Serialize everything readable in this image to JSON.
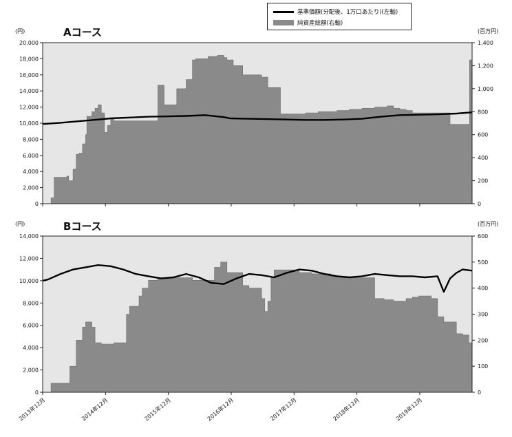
{
  "legend": {
    "line_label": "基準価額(分配後、1万口あたり)(左軸)",
    "area_label": "純資産総額(右軸)"
  },
  "x_labels": [
    "2013年12月",
    "2014年12月",
    "2015年12月",
    "2016年12月",
    "2017年12月",
    "2018年12月",
    "2019年12月"
  ],
  "colors": {
    "area": "#8a8a8a",
    "plot_bg": "#e6e6e6",
    "line": "#000000"
  },
  "chart_data": [
    {
      "type": "area",
      "title": "Aコース",
      "left_unit": "(円)",
      "right_unit": "(百万円)",
      "x_range": [
        2013.917,
        2020.75
      ],
      "y_left_range": [
        0,
        20000
      ],
      "y_right_range": [
        0,
        1400
      ],
      "y_left_ticks": [
        "0",
        "2,000",
        "4,000",
        "6,000",
        "8,000",
        "10,000",
        "12,000",
        "14,000",
        "16,000",
        "18,000",
        "20,000"
      ],
      "y_right_ticks": [
        "0",
        "200",
        "400",
        "600",
        "800",
        "1,000",
        "1,200",
        "1,400"
      ],
      "series": [
        {
          "axis": "right",
          "kind": "area",
          "x": [
            2013.917,
            2014.0,
            2014.05,
            2014.1,
            2014.3,
            2014.33,
            2014.4,
            2014.45,
            2014.5,
            2014.55,
            2014.6,
            2014.62,
            2014.7,
            2014.75,
            2014.8,
            2014.85,
            2014.9,
            2014.95,
            2015.0,
            2015.05,
            2015.1,
            2015.15,
            2015.2,
            2015.25,
            2015.35,
            2015.5,
            2015.7,
            2015.75,
            2015.85,
            2016.05,
            2016.2,
            2016.3,
            2016.35,
            2016.45,
            2016.55,
            2016.7,
            2016.8,
            2016.85,
            2016.95,
            2017.1,
            2017.3,
            2017.4,
            2017.5,
            2017.6,
            2017.7,
            2017.8,
            2017.95,
            2018.1,
            2018.3,
            2018.5,
            2018.6,
            2018.8,
            2019.0,
            2019.2,
            2019.4,
            2019.5,
            2019.6,
            2019.7,
            2019.8,
            2020.0,
            2020.2,
            2020.4,
            2020.6,
            2020.7,
            2020.71,
            2020.75
          ],
          "values": [
            0,
            0,
            50,
            230,
            240,
            200,
            300,
            430,
            440,
            520,
            600,
            760,
            800,
            830,
            860,
            790,
            620,
            680,
            740,
            720,
            720,
            720,
            720,
            720,
            720,
            720,
            720,
            1030,
            860,
            1000,
            1080,
            1250,
            1260,
            1260,
            1280,
            1290,
            1270,
            1250,
            1200,
            1120,
            1120,
            1100,
            1010,
            1010,
            780,
            780,
            780,
            790,
            800,
            800,
            810,
            820,
            830,
            840,
            850,
            830,
            820,
            810,
            790,
            790,
            790,
            690,
            690,
            690,
            1250,
            1250
          ]
        },
        {
          "axis": "left",
          "kind": "line",
          "x": [
            2013.917,
            2014.2,
            2014.5,
            2014.8,
            2015.0,
            2015.3,
            2015.6,
            2015.9,
            2016.2,
            2016.5,
            2016.8,
            2016.9,
            2017.2,
            2017.5,
            2017.8,
            2018.1,
            2018.4,
            2018.7,
            2019.0,
            2019.3,
            2019.6,
            2019.9,
            2020.2,
            2020.5,
            2020.75
          ],
          "values": [
            9900,
            10050,
            10250,
            10450,
            10600,
            10700,
            10800,
            10850,
            10900,
            11000,
            10750,
            10600,
            10550,
            10500,
            10450,
            10400,
            10400,
            10450,
            10550,
            10800,
            11000,
            11050,
            11100,
            11200,
            11350
          ]
        }
      ]
    },
    {
      "type": "area",
      "title": "Bコース",
      "left_unit": "(円)",
      "right_unit": "(百万円)",
      "x_range": [
        2013.917,
        2020.75
      ],
      "y_left_range": [
        0,
        14000
      ],
      "y_right_range": [
        0,
        600
      ],
      "y_left_ticks": [
        "0",
        "2,000",
        "4,000",
        "6,000",
        "8,000",
        "10,000",
        "12,000",
        "14,000"
      ],
      "y_right_ticks": [
        "0",
        "100",
        "200",
        "300",
        "400",
        "500",
        "600"
      ],
      "series": [
        {
          "axis": "right",
          "kind": "area",
          "x": [
            2013.917,
            2014.0,
            2014.05,
            2014.3,
            2014.35,
            2014.45,
            2014.55,
            2014.6,
            2014.7,
            2014.75,
            2014.85,
            2014.95,
            2015.05,
            2015.25,
            2015.3,
            2015.45,
            2015.5,
            2015.6,
            2015.75,
            2016.0,
            2016.3,
            2016.5,
            2016.6,
            2016.65,
            2016.75,
            2016.85,
            2017.1,
            2017.2,
            2017.4,
            2017.45,
            2017.5,
            2017.55,
            2017.6,
            2017.95,
            2018.0,
            2018.2,
            2018.5,
            2018.7,
            2018.8,
            2018.9,
            2019.05,
            2019.2,
            2019.35,
            2019.5,
            2019.7,
            2019.8,
            2019.9,
            2020.0,
            2020.1,
            2020.2,
            2020.3,
            2020.5,
            2020.6,
            2020.7,
            2020.75
          ],
          "values": [
            0,
            0,
            35,
            35,
            100,
            200,
            250,
            270,
            250,
            190,
            185,
            185,
            190,
            300,
            330,
            370,
            400,
            430,
            440,
            440,
            430,
            430,
            430,
            480,
            500,
            460,
            410,
            400,
            360,
            310,
            350,
            440,
            470,
            470,
            460,
            455,
            445,
            440,
            440,
            440,
            440,
            360,
            355,
            350,
            360,
            365,
            370,
            370,
            360,
            290,
            270,
            225,
            220,
            190,
            185
          ]
        },
        {
          "axis": "left",
          "kind": "line",
          "x": [
            2013.917,
            2014.0,
            2014.2,
            2014.4,
            2014.6,
            2014.8,
            2015.0,
            2015.2,
            2015.4,
            2015.6,
            2015.8,
            2016.0,
            2016.2,
            2016.4,
            2016.6,
            2016.8,
            2017.0,
            2017.2,
            2017.4,
            2017.6,
            2017.8,
            2018.0,
            2018.2,
            2018.4,
            2018.6,
            2018.8,
            2019.0,
            2019.2,
            2019.4,
            2019.6,
            2019.8,
            2020.0,
            2020.2,
            2020.3,
            2020.4,
            2020.5,
            2020.6,
            2020.75
          ],
          "values": [
            10000,
            10100,
            10600,
            11000,
            11200,
            11400,
            11300,
            11000,
            10600,
            10400,
            10200,
            10300,
            10600,
            10300,
            9800,
            9700,
            10200,
            10600,
            10500,
            10300,
            10700,
            11000,
            10900,
            10600,
            10400,
            10300,
            10400,
            10600,
            10500,
            10400,
            10400,
            10300,
            10400,
            9000,
            10200,
            10700,
            11000,
            10900
          ]
        }
      ]
    }
  ]
}
